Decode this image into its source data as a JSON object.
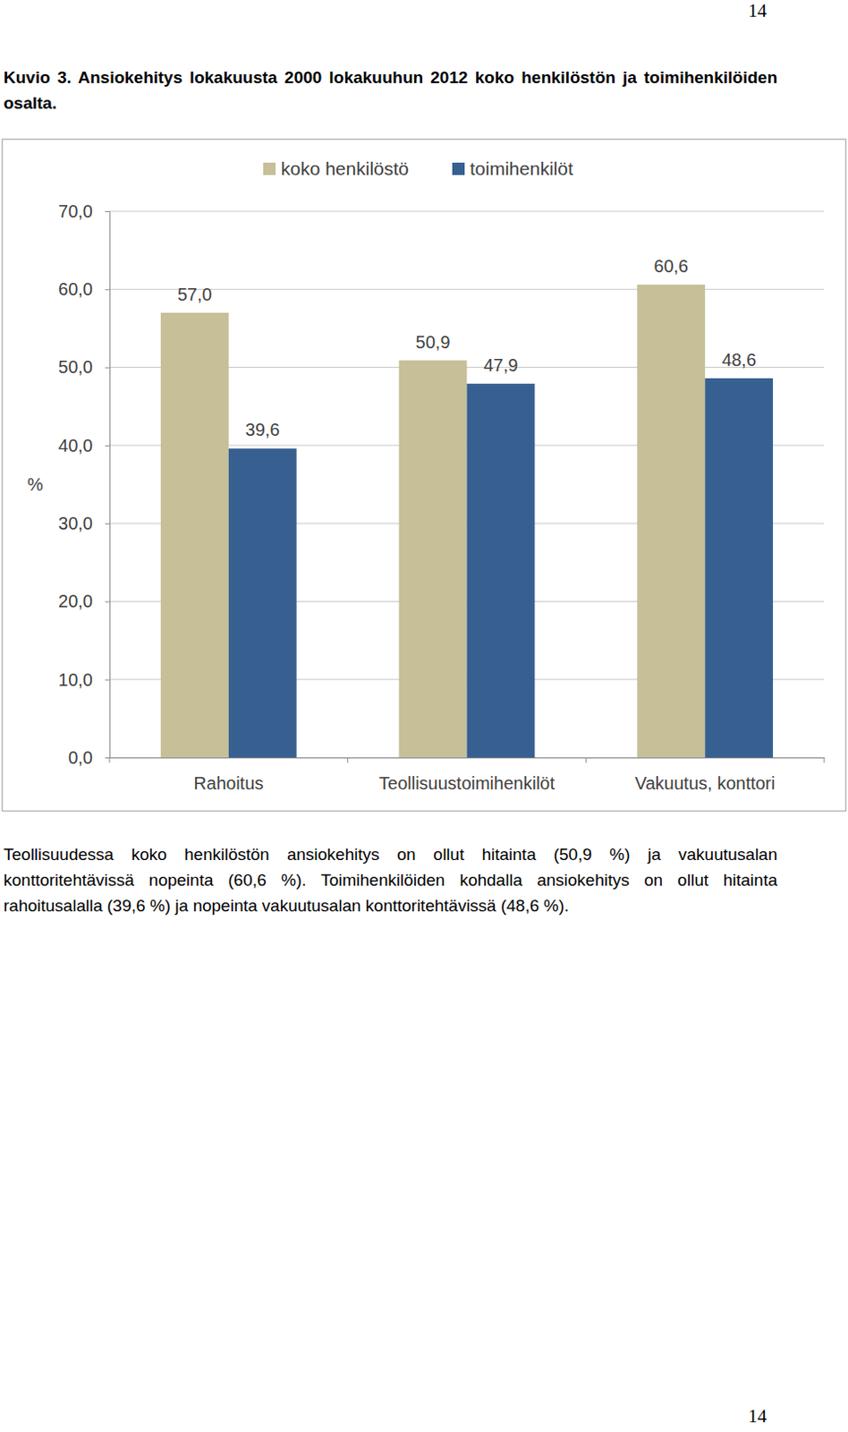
{
  "page_numbers": [
    "14",
    "14"
  ],
  "chart_data": {
    "type": "bar",
    "title": "Kuvio 3. Ansiokehitys lokakuusta 2000 lokakuuhun 2012 koko henkilöstön ja toimihenkilöiden osalta.",
    "y_label": "%",
    "categories": [
      "Rahoitus",
      "Teollisuustoimihenkilöt",
      "Vakuutus, konttori"
    ],
    "series": [
      {
        "name": "koko henkilöstö",
        "color": "#c6bf98",
        "values": [
          57.0,
          50.9,
          60.6
        ],
        "value_labels": [
          "57,0",
          "50,9",
          "60,6"
        ]
      },
      {
        "name": "toimihenkilöt",
        "color": "#376091",
        "values": [
          39.6,
          47.9,
          48.6
        ],
        "value_labels": [
          "39,6",
          "47,9",
          "48,6"
        ]
      }
    ],
    "ylim": [
      0,
      70
    ],
    "yticks": [
      {
        "value": 0,
        "label": "0,0"
      },
      {
        "value": 10,
        "label": "10,0"
      },
      {
        "value": 20,
        "label": "20,0"
      },
      {
        "value": 30,
        "label": "30,0"
      },
      {
        "value": 40,
        "label": "40,0"
      },
      {
        "value": 50,
        "label": "50,0"
      },
      {
        "value": 60,
        "label": "60,0"
      },
      {
        "value": 70,
        "label": "70,0"
      }
    ],
    "grid": true,
    "legend": "top",
    "data_labels": true
  },
  "text": {
    "paragraph": "Teollisuudessa koko henkilöstön ansiokehitys on ollut hitainta (50,9 %) ja vakuutusalan konttoritehtävissä nopeinta (60,6 %). Toimihenkilöiden kohdalla ansiokehitys on ollut hitainta rahoitusalalla (39,6 %) ja nopeinta vakuutusalan konttoritehtävissä (48,6 %)."
  }
}
